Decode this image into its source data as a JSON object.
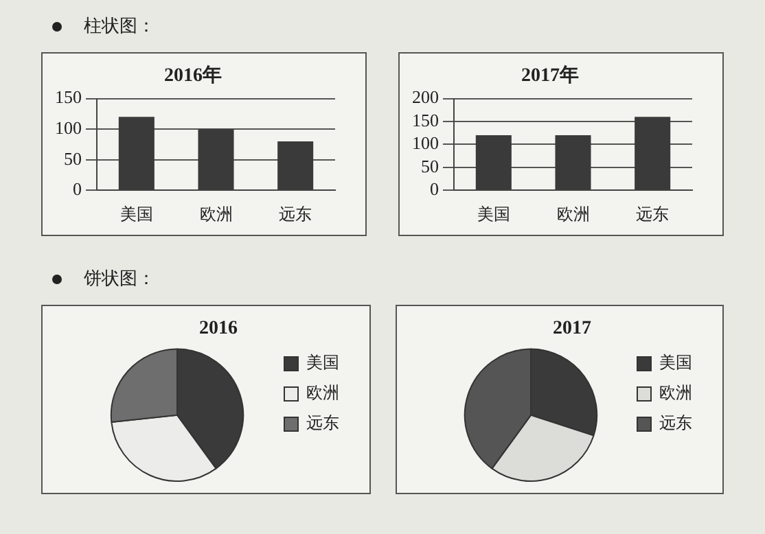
{
  "chart_data": [
    {
      "type": "bar",
      "title": "2016年",
      "annotations": [
        "柱状图："
      ],
      "categories": [
        "美国",
        "欧洲",
        "远东"
      ],
      "values": [
        120,
        100,
        80
      ],
      "color": "#3a3a3a",
      "ylim": [
        0,
        150
      ],
      "yticks": [
        0,
        50,
        100,
        150
      ],
      "grid": "y"
    },
    {
      "type": "bar",
      "title": "2017年",
      "categories": [
        "美国",
        "欧洲",
        "远东"
      ],
      "values": [
        120,
        120,
        160
      ],
      "color": "#3a3a3a",
      "ylim": [
        0,
        200
      ],
      "yticks": [
        0,
        50,
        100,
        150,
        200
      ],
      "grid": "y"
    },
    {
      "type": "pie",
      "title": "2016",
      "annotations": [
        "饼状图："
      ],
      "categories": [
        "美国",
        "欧洲",
        "远东"
      ],
      "values": [
        40,
        33.3,
        26.7
      ],
      "colors": [
        "#3a3a3a",
        "#ececea",
        "#6e6e6e"
      ],
      "legend": "right"
    },
    {
      "type": "pie",
      "title": "2017",
      "categories": [
        "美国",
        "欧洲",
        "远东"
      ],
      "values": [
        30,
        30,
        40
      ],
      "colors": [
        "#3a3a3a",
        "#dcdcd8",
        "#555555"
      ],
      "legend": "right"
    }
  ]
}
